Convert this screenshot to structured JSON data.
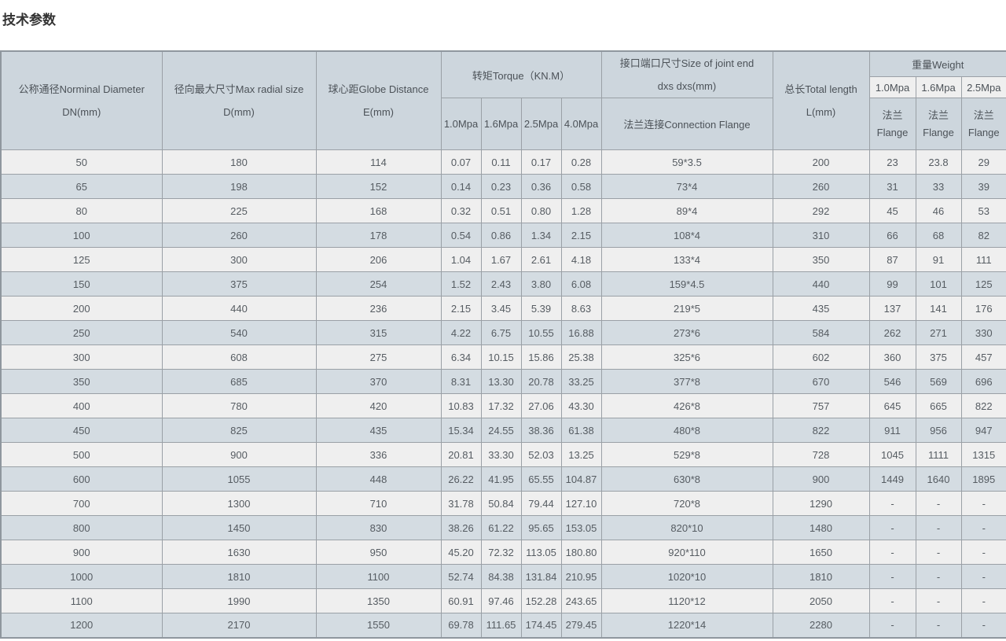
{
  "page": {
    "title": "技术参数"
  },
  "colors": {
    "header_bg": "#cdd6dd",
    "row_light": "#efefef",
    "row_dark": "#d4dce2",
    "border": "#9aa0a6",
    "title_text": "#333333",
    "cell_text": "#565c62"
  },
  "table": {
    "header": {
      "col_dn": {
        "line1": "公称通径Norminal Diameter",
        "line2": "DN(mm)"
      },
      "col_d": {
        "line1": "径向最大尺寸Max radial size",
        "line2": "D(mm)"
      },
      "col_e": {
        "line1": "球心距Globe Distance",
        "line2": "E(mm)"
      },
      "torque_group": "转矩Torque（KN.M）",
      "torque_cols": [
        "1.0Mpa",
        "1.6Mpa",
        "2.5Mpa",
        "4.0Mpa"
      ],
      "joint": {
        "line1": "接口端口尺寸Size of joint end",
        "line2": "dxs dxs(mm)",
        "sub": "法兰连接Connection Flange"
      },
      "col_l": {
        "line1": "总长Total length",
        "line2": "L(mm)"
      },
      "weight_group": "重量Weight",
      "weight_cols": [
        "1.0Mpa",
        "1.6Mpa",
        "2.5Mpa"
      ],
      "weight_sub": {
        "line1": "法兰",
        "line2": "Flange"
      }
    },
    "rows": [
      [
        "50",
        "180",
        "114",
        "0.07",
        "0.11",
        "0.17",
        "0.28",
        "59*3.5",
        "200",
        "23",
        "23.8",
        "29"
      ],
      [
        "65",
        "198",
        "152",
        "0.14",
        "0.23",
        "0.36",
        "0.58",
        "73*4",
        "260",
        "31",
        "33",
        "39"
      ],
      [
        "80",
        "225",
        "168",
        "0.32",
        "0.51",
        "0.80",
        "1.28",
        "89*4",
        "292",
        "45",
        "46",
        "53"
      ],
      [
        "100",
        "260",
        "178",
        "0.54",
        "0.86",
        "1.34",
        "2.15",
        "108*4",
        "310",
        "66",
        "68",
        "82"
      ],
      [
        "125",
        "300",
        "206",
        "1.04",
        "1.67",
        "2.61",
        "4.18",
        "133*4",
        "350",
        "87",
        "91",
        "111"
      ],
      [
        "150",
        "375",
        "254",
        "1.52",
        "2.43",
        "3.80",
        "6.08",
        "159*4.5",
        "440",
        "99",
        "101",
        "125"
      ],
      [
        "200",
        "440",
        "236",
        "2.15",
        "3.45",
        "5.39",
        "8.63",
        "219*5",
        "435",
        "137",
        "141",
        "176"
      ],
      [
        "250",
        "540",
        "315",
        "4.22",
        "6.75",
        "10.55",
        "16.88",
        "273*6",
        "584",
        "262",
        "271",
        "330"
      ],
      [
        "300",
        "608",
        "275",
        "6.34",
        "10.15",
        "15.86",
        "25.38",
        "325*6",
        "602",
        "360",
        "375",
        "457"
      ],
      [
        "350",
        "685",
        "370",
        "8.31",
        "13.30",
        "20.78",
        "33.25",
        "377*8",
        "670",
        "546",
        "569",
        "696"
      ],
      [
        "400",
        "780",
        "420",
        "10.83",
        "17.32",
        "27.06",
        "43.30",
        "426*8",
        "757",
        "645",
        "665",
        "822"
      ],
      [
        "450",
        "825",
        "435",
        "15.34",
        "24.55",
        "38.36",
        "61.38",
        "480*8",
        "822",
        "911",
        "956",
        "947"
      ],
      [
        "500",
        "900",
        "336",
        "20.81",
        "33.30",
        "52.03",
        "13.25",
        "529*8",
        "728",
        "1045",
        "1111",
        "1315"
      ],
      [
        "600",
        "1055",
        "448",
        "26.22",
        "41.95",
        "65.55",
        "104.87",
        "630*8",
        "900",
        "1449",
        "1640",
        "1895"
      ],
      [
        "700",
        "1300",
        "710",
        "31.78",
        "50.84",
        "79.44",
        "127.10",
        "720*8",
        "1290",
        "-",
        "-",
        "-"
      ],
      [
        "800",
        "1450",
        "830",
        "38.26",
        "61.22",
        "95.65",
        "153.05",
        "820*10",
        "1480",
        "-",
        "-",
        "-"
      ],
      [
        "900",
        "1630",
        "950",
        "45.20",
        "72.32",
        "113.05",
        "180.80",
        "920*110",
        "1650",
        "-",
        "-",
        "-"
      ],
      [
        "1000",
        "1810",
        "1100",
        "52.74",
        "84.38",
        "131.84",
        "210.95",
        "1020*10",
        "1810",
        "-",
        "-",
        "-"
      ],
      [
        "1100",
        "1990",
        "1350",
        "60.91",
        "97.46",
        "152.28",
        "243.65",
        "1120*12",
        "2050",
        "-",
        "-",
        "-"
      ],
      [
        "1200",
        "2170",
        "1550",
        "69.78",
        "111.65",
        "174.45",
        "279.45",
        "1220*14",
        "2280",
        "-",
        "-",
        "-"
      ]
    ]
  }
}
